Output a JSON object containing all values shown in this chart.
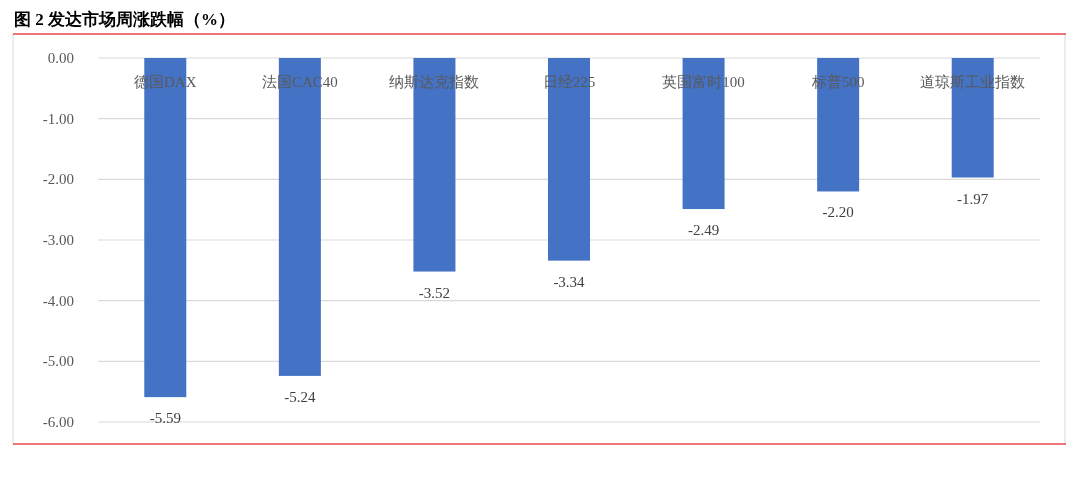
{
  "chart_data": {
    "type": "bar",
    "title": "图 2 发达市场周涨跌幅（%）",
    "categories": [
      "德国DAX",
      "法国CAC40",
      "纳斯达克指数",
      "日经225",
      "英国富时100",
      "标普500",
      "道琼斯工业指数"
    ],
    "values": [
      -5.59,
      -5.24,
      -3.52,
      -3.34,
      -2.49,
      -2.2,
      -1.97
    ],
    "value_labels": [
      "-5.59",
      "-5.24",
      "-3.52",
      "-3.34",
      "-2.49",
      "-2.20",
      "-1.97"
    ],
    "color": "#4472c4",
    "ylim": [
      -6,
      0
    ],
    "yticks": [
      {
        "value": 0,
        "label": "0.00"
      },
      {
        "value": -1,
        "label": "-1.00"
      },
      {
        "value": -2,
        "label": "-2.00"
      },
      {
        "value": -3,
        "label": "-3.00"
      },
      {
        "value": -4,
        "label": "-4.00"
      },
      {
        "value": -5,
        "label": "-5.00"
      },
      {
        "value": -6,
        "label": "-6.00"
      }
    ],
    "grid": "y"
  }
}
